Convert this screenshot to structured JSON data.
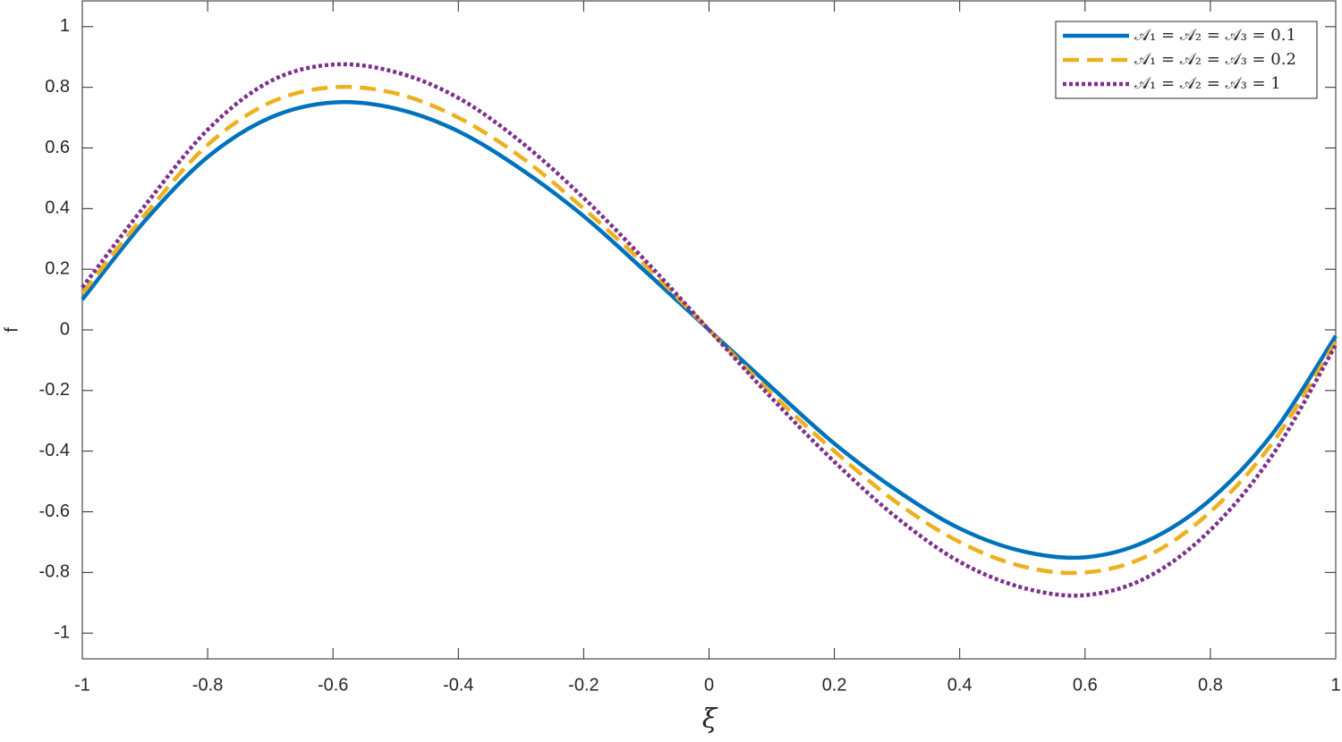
{
  "chart_data": {
    "type": "line",
    "x_label": "ξ",
    "y_label": "f",
    "x": [
      -1,
      -0.9,
      -0.8,
      -0.7,
      -0.6,
      -0.5,
      -0.4,
      -0.3,
      -0.2,
      -0.1,
      0,
      0.1,
      0.2,
      0.3,
      0.4,
      0.5,
      0.6,
      0.7,
      0.8,
      0.9,
      1
    ],
    "series": [
      {
        "name": "𝒜₁ = 𝒜₂ = 𝒜₃ = 0.1",
        "color": "#0072BD",
        "style": "solid",
        "values": [
          0.1,
          0.36,
          0.57,
          0.7,
          0.75,
          0.73,
          0.655,
          0.53,
          0.375,
          0.19,
          0,
          -0.19,
          -0.375,
          -0.53,
          -0.655,
          -0.73,
          -0.75,
          -0.695,
          -0.56,
          -0.34,
          -0.02
        ]
      },
      {
        "name": "𝒜₁ = 𝒜₂ = 𝒜₃ = 0.2",
        "color": "#EDB120",
        "style": "dashed",
        "values": [
          0.12,
          0.38,
          0.61,
          0.75,
          0.8,
          0.78,
          0.7,
          0.57,
          0.4,
          0.21,
          0,
          -0.21,
          -0.4,
          -0.57,
          -0.7,
          -0.78,
          -0.8,
          -0.745,
          -0.6,
          -0.37,
          -0.04
        ]
      },
      {
        "name": "𝒜₁ = 𝒜₂ = 𝒜₃ = 1",
        "color": "#7E2F8E",
        "style": "dotted",
        "values": [
          0.14,
          0.41,
          0.66,
          0.82,
          0.875,
          0.85,
          0.765,
          0.62,
          0.435,
          0.225,
          0,
          -0.225,
          -0.435,
          -0.62,
          -0.765,
          -0.85,
          -0.875,
          -0.815,
          -0.66,
          -0.41,
          -0.05
        ]
      }
    ],
    "xlim": [
      -1,
      1
    ],
    "ylim": [
      -1.085,
      1.085
    ],
    "xticks": [
      -1,
      -0.8,
      -0.6,
      -0.4,
      -0.2,
      0,
      0.2,
      0.4,
      0.6,
      0.8,
      1
    ],
    "yticks": [
      -1,
      -0.8,
      -0.6,
      -0.4,
      -0.2,
      0,
      0.2,
      0.4,
      0.6,
      0.8,
      1
    ],
    "grid": false,
    "legend": "top-right"
  }
}
